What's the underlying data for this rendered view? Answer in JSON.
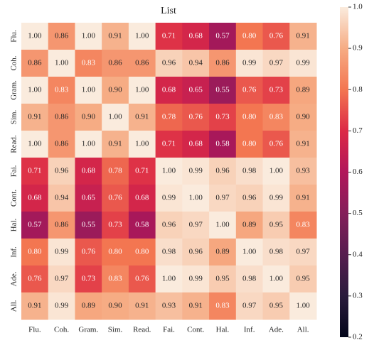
{
  "chart_data": {
    "type": "heatmap",
    "title": "List",
    "x_categories": [
      "Flu.",
      "Coh.",
      "Gram.",
      "Sim.",
      "Read.",
      "Fai.",
      "Cont.",
      "Hal.",
      "Inf.",
      "Ade.",
      "All."
    ],
    "y_categories": [
      "Flu.",
      "Coh.",
      "Gram.",
      "Sim.",
      "Read.",
      "Fai.",
      "Cont.",
      "Hal.",
      "Inf.",
      "Ade.",
      "All."
    ],
    "values": [
      [
        1.0,
        0.86,
        1.0,
        0.91,
        1.0,
        0.71,
        0.68,
        0.57,
        0.8,
        0.76,
        0.91
      ],
      [
        0.86,
        1.0,
        0.83,
        0.86,
        0.86,
        0.96,
        0.94,
        0.86,
        0.99,
        0.97,
        0.99
      ],
      [
        1.0,
        0.83,
        1.0,
        0.9,
        1.0,
        0.68,
        0.65,
        0.55,
        0.76,
        0.73,
        0.89
      ],
      [
        0.91,
        0.86,
        0.9,
        1.0,
        0.91,
        0.78,
        0.76,
        0.73,
        0.8,
        0.83,
        0.9
      ],
      [
        1.0,
        0.86,
        1.0,
        0.91,
        1.0,
        0.71,
        0.68,
        0.58,
        0.8,
        0.76,
        0.91
      ],
      [
        0.71,
        0.96,
        0.68,
        0.78,
        0.71,
        1.0,
        0.99,
        0.96,
        0.98,
        1.0,
        0.93
      ],
      [
        0.68,
        0.94,
        0.65,
        0.76,
        0.68,
        0.99,
        1.0,
        0.97,
        0.96,
        0.99,
        0.91
      ],
      [
        0.57,
        0.86,
        0.55,
        0.73,
        0.58,
        0.96,
        0.97,
        1.0,
        0.89,
        0.95,
        0.83
      ],
      [
        0.8,
        0.99,
        0.76,
        0.8,
        0.8,
        0.98,
        0.96,
        0.89,
        1.0,
        0.98,
        0.97
      ],
      [
        0.76,
        0.97,
        0.73,
        0.83,
        0.76,
        1.0,
        0.99,
        0.95,
        0.98,
        1.0,
        0.95
      ],
      [
        0.91,
        0.99,
        0.89,
        0.9,
        0.91,
        0.93,
        0.91,
        0.83,
        0.97,
        0.95,
        1.0
      ]
    ],
    "value_labels": [
      [
        "1.00",
        "0.86",
        "1.00",
        "0.91",
        "1.00",
        "0.71",
        "0.68",
        "0.57",
        "0.80",
        "0.76",
        "0.91"
      ],
      [
        "0.86",
        "1.00",
        "0.83",
        "0.86",
        "0.86",
        "0.96",
        "0.94",
        "0.86",
        "0.99",
        "0.97",
        "0.99"
      ],
      [
        "1.00",
        "0.83",
        "1.00",
        "0.90",
        "1.00",
        "0.68",
        "0.65",
        "0.55",
        "0.76",
        "0.73",
        "0.89"
      ],
      [
        "0.91",
        "0.86",
        "0.90",
        "1.00",
        "0.91",
        "0.78",
        "0.76",
        "0.73",
        "0.80",
        "0.83",
        "0.90"
      ],
      [
        "1.00",
        "0.86",
        "1.00",
        "0.91",
        "1.00",
        "0.71",
        "0.68",
        "0.58",
        "0.80",
        "0.76",
        "0.91"
      ],
      [
        "0.71",
        "0.96",
        "0.68",
        "0.78",
        "0.71",
        "1.00",
        "0.99",
        "0.96",
        "0.98",
        "1.00",
        "0.93"
      ],
      [
        "0.68",
        "0.94",
        "0.65",
        "0.76",
        "0.68",
        "0.99",
        "1.00",
        "0.97",
        "0.96",
        "0.99",
        "0.91"
      ],
      [
        "0.57",
        "0.86",
        "0.55",
        "0.73",
        "0.58",
        "0.96",
        "0.97",
        "1.00",
        "0.89",
        "0.95",
        "0.83"
      ],
      [
        "0.80",
        "0.99",
        "0.76",
        "0.80",
        "0.80",
        "0.98",
        "0.96",
        "0.89",
        "1.00",
        "0.98",
        "0.97"
      ],
      [
        "0.76",
        "0.97",
        "0.73",
        "0.83",
        "0.76",
        "1.00",
        "0.99",
        "0.95",
        "0.98",
        "1.00",
        "0.95"
      ],
      [
        "0.91",
        "0.99",
        "0.89",
        "0.90",
        "0.91",
        "0.93",
        "0.91",
        "0.83",
        "0.97",
        "0.95",
        "1.00"
      ]
    ],
    "colorscale": [
      "#03051a",
      "#2a1b3c",
      "#561d4f",
      "#841e5a",
      "#b1175a",
      "#dc2a46",
      "#f37651",
      "#f6ac84",
      "#faebdd"
    ],
    "clim": [
      0.2,
      1.0
    ],
    "cticks": [
      0.2,
      0.3,
      0.4,
      0.5,
      0.6,
      0.7,
      0.8,
      0.9,
      {
        "value": 1.0,
        "label": "1.0"
      }
    ]
  }
}
